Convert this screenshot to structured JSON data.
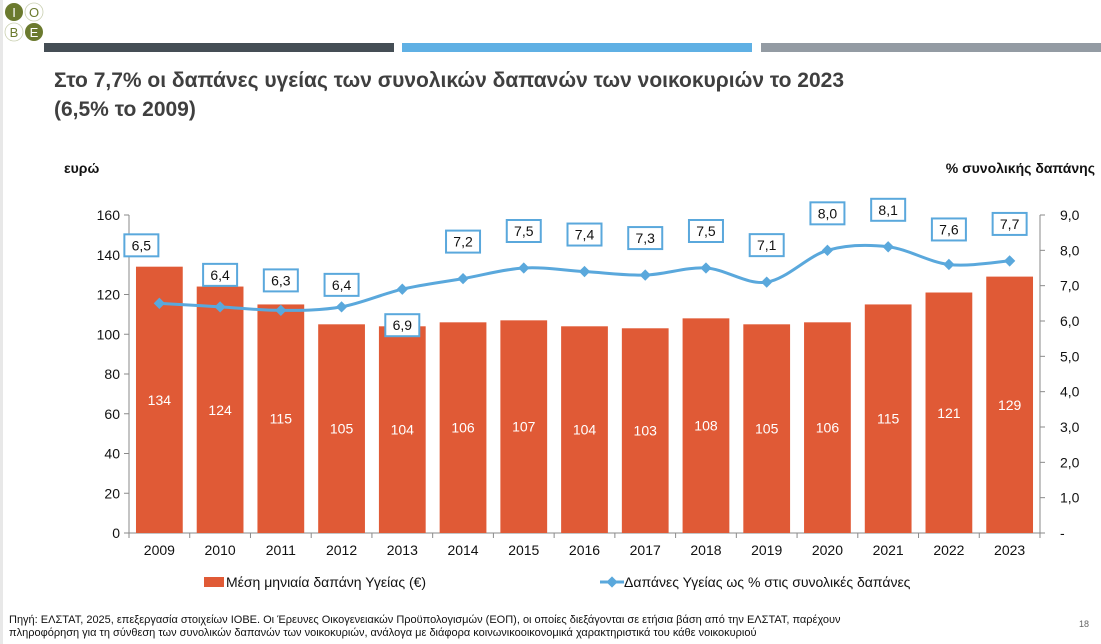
{
  "header": {
    "logo_text": "IOBE",
    "strip_colors": [
      "#454e55",
      "#5fb0e4",
      "#939ba3"
    ]
  },
  "title_line1": "Στο 7,7% οι δαπάνες υγείας των συνολικών δαπανών των νοικοκυριών το 2023",
  "title_line2": "(6,5% το 2009)",
  "footer": {
    "line1": "Πηγή: ΕΛΣΤΑΤ, 2025, επεξεργασία στοιχείων ΙΟΒΕ. Οι Έρευνες Οικογενειακών Προϋπολογισμών (ΕΟΠ), οι οποίες διεξάγονται σε ετήσια βάση από την ΕΛΣΤΑΤ, παρέχουν",
    "line2": "πληροφόρηση για τη σύνθεση των συνολικών δαπανών των νοικοκυριών, ανάλογα με διάφορα κοινωνικοοικονομικά χαρακτηριστικά του κάθε νοικοκυριού",
    "page_number": "18"
  },
  "chart_data": {
    "type": "bar",
    "title": "Στο 7,7% οι δαπάνες υγείας των συνολικών δαπανών των νοικοκυριών το 2023 (6,5% το 2009)",
    "ylabel": "ευρώ",
    "y2label": "% συνολικής δαπάνης",
    "categories": [
      "2009",
      "2010",
      "2011",
      "2012",
      "2013",
      "2014",
      "2015",
      "2016",
      "2017",
      "2018",
      "2019",
      "2020",
      "2021",
      "2022",
      "2023"
    ],
    "ylim": [
      0,
      160
    ],
    "y2lim": [
      0,
      9
    ],
    "yticks": [
      "0",
      "20",
      "40",
      "60",
      "80",
      "100",
      "120",
      "140",
      "160"
    ],
    "y2ticks": [
      "-",
      "1,0",
      "2,0",
      "3,0",
      "4,0",
      "5,0",
      "6,0",
      "7,0",
      "8,0",
      "9,0"
    ],
    "series": [
      {
        "name": "Μέση μηνιαία δαπάνη Υγείας (€)",
        "type": "bar",
        "axis": "left",
        "color": "#e05a36",
        "values": [
          134,
          124,
          115,
          105,
          104,
          106,
          107,
          104,
          103,
          108,
          105,
          106,
          115,
          121,
          129
        ],
        "labels": [
          "134",
          "124",
          "115",
          "105",
          "104",
          "106",
          "107",
          "104",
          "103",
          "108",
          "105",
          "106",
          "115",
          "121",
          "129"
        ]
      },
      {
        "name": "Δαπάνες Υγείας ως % στις συνολικές δαπάνες",
        "type": "line",
        "axis": "right",
        "color": "#5aa8dc",
        "values": [
          6.5,
          6.4,
          6.3,
          6.4,
          6.9,
          7.2,
          7.5,
          7.4,
          7.3,
          7.5,
          7.1,
          8.0,
          8.1,
          7.6,
          7.7
        ],
        "labels": [
          "6,5",
          "6,4",
          "6,3",
          "6,4",
          "6,9",
          "7,2",
          "7,5",
          "7,4",
          "7,3",
          "7,5",
          "7,1",
          "8,0",
          "8,1",
          "7,6",
          "7,7"
        ]
      }
    ],
    "legend": "bottom"
  }
}
